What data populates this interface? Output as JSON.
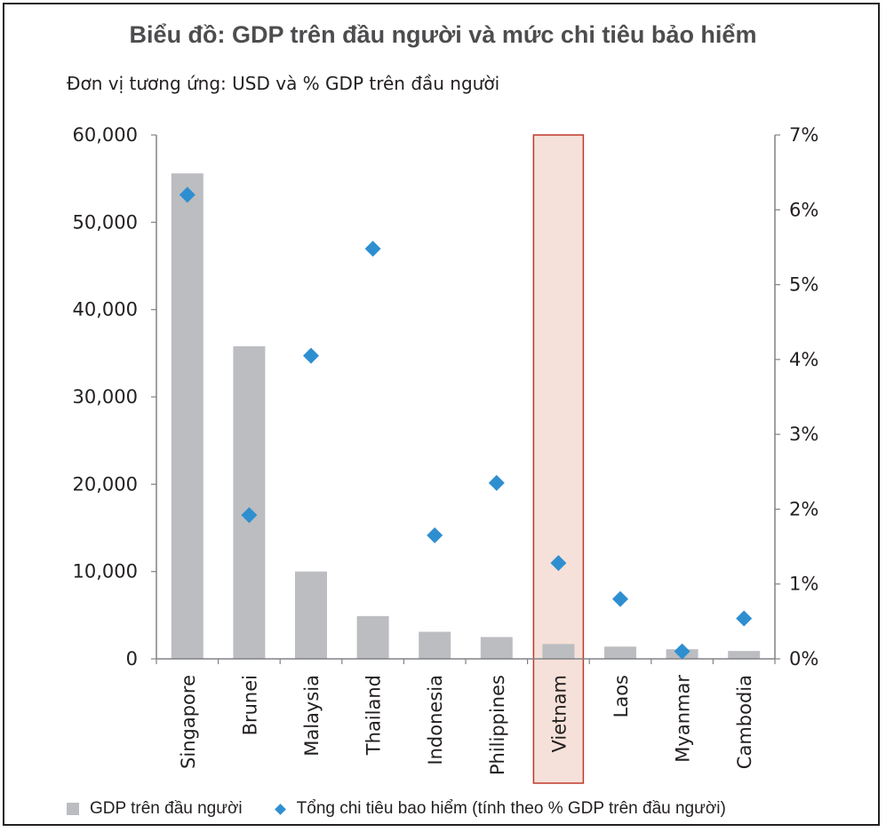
{
  "title": "Biểu đồ: GDP trên đầu người và mức chi tiêu bảo hiểm",
  "subtitle": "Đơn vị tương ứng: USD và % GDP trên đầu người",
  "chart_data": {
    "type": "bar",
    "categories": [
      "Singapore",
      "Brunei",
      "Malaysia",
      "Thailand",
      "Indonesia",
      "Philippines",
      "Vietnam",
      "Laos",
      "Myanmar",
      "Cambodia"
    ],
    "series": [
      {
        "name": "GDP trên đầu người",
        "type": "bar",
        "axis": "left",
        "color": "#bcbdc0",
        "values": [
          55600,
          35800,
          10000,
          4900,
          3100,
          2500,
          1700,
          1400,
          1100,
          900
        ]
      },
      {
        "name": "Tổng chi tiêu bao hiểm (tính theo % GDP trên đầu người)",
        "type": "scatter",
        "marker": "diamond",
        "axis": "right",
        "color": "#2e8fd0",
        "values": [
          6.2,
          1.92,
          4.05,
          5.48,
          1.65,
          2.35,
          1.28,
          0.8,
          0.1,
          0.54
        ]
      }
    ],
    "y_left": {
      "ylim": [
        0,
        60000
      ],
      "ticks": [
        "0",
        "10,000",
        "20,000",
        "30,000",
        "40,000",
        "50,000",
        "60,000"
      ]
    },
    "y_right": {
      "ylim": [
        0,
        7
      ],
      "ticks": [
        "0%",
        "1%",
        "2%",
        "3%",
        "4%",
        "5%",
        "6%",
        "7%"
      ]
    },
    "highlight": {
      "category": "Vietnam",
      "color": "#c0392b",
      "fill": "#f5e1d9"
    },
    "grid": false,
    "legend_position": "bottom"
  }
}
